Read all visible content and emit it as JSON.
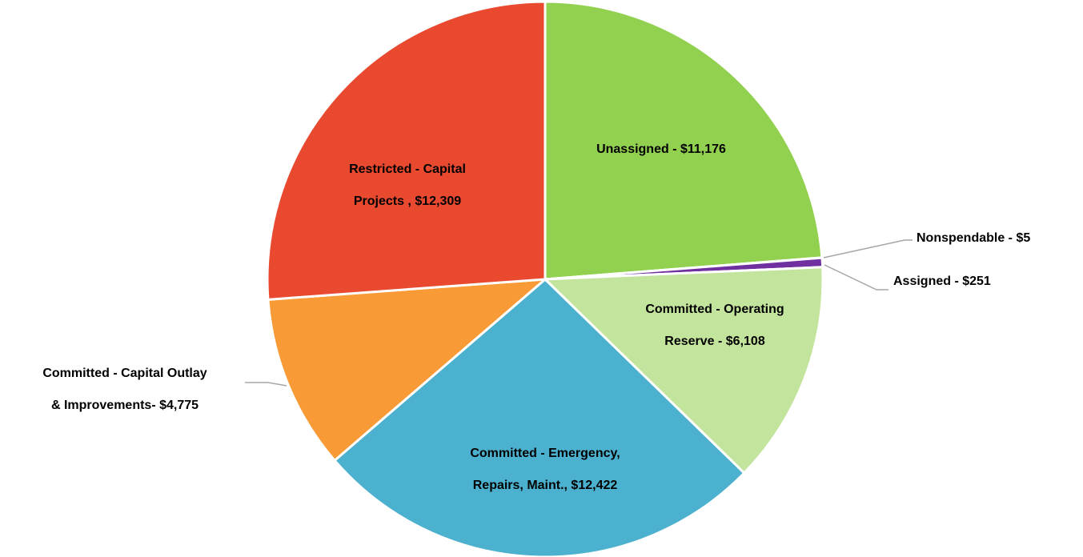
{
  "chart_data": {
    "type": "pie",
    "categories": [
      [
        "Unassigned -  $11,176"
      ],
      [
        "Nonspendable - $5"
      ],
      [
        "Assigned - $251"
      ],
      [
        "Committed - Operating",
        "Reserve - $6,108"
      ],
      [
        "Committed - Emergency,",
        "Repairs, Maint.,  $12,422"
      ],
      [
        "Committed - Capital Outlay",
        "& Improvements- $4,775"
      ],
      [
        "Restricted - Capital",
        "Projects ,  $12,309"
      ]
    ],
    "values": [
      11176,
      5,
      251,
      6108,
      12422,
      4775,
      12309
    ],
    "colors": [
      "#92d050",
      "#5b9bd5",
      "#7030a0",
      "#c3e49d",
      "#4bb1cf",
      "#f89a36",
      "#e8492f"
    ]
  }
}
